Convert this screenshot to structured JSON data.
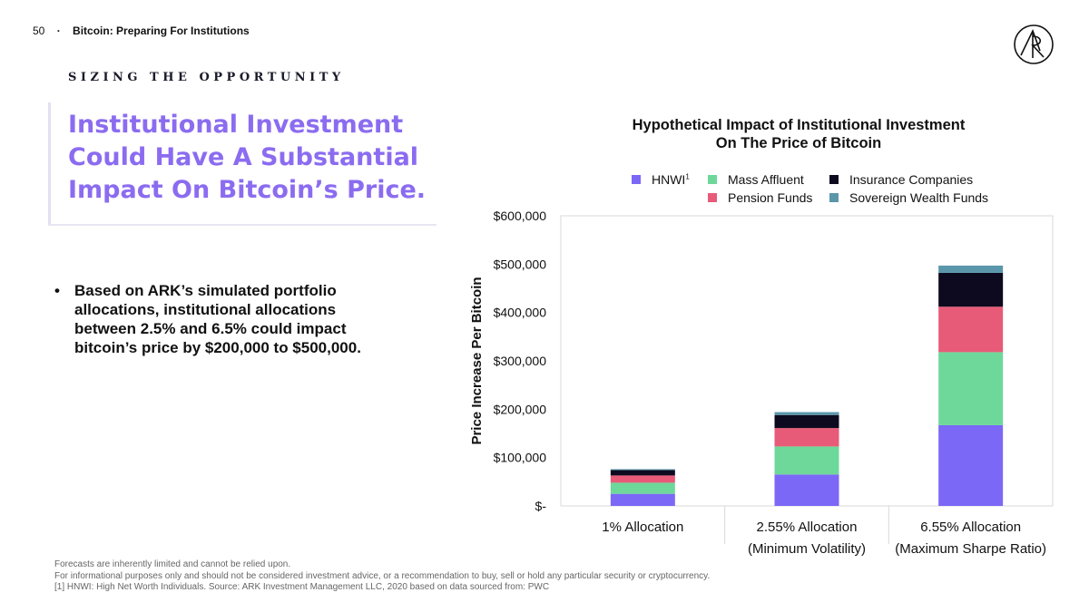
{
  "header": {
    "page_number": "50",
    "separator": "·",
    "doc_title": "Bitcoin: Preparing For Institutions"
  },
  "kicker": "SIZING THE OPPORTUNITY",
  "headline": "Institutional Investment Could Have A Substantial Impact On Bitcoin’s Price.",
  "bullet": {
    "mark": "•",
    "text": "Based on ARK’s simulated portfolio allocations, institutional allocations between 2.5% and 6.5% could impact bitcoin’s price by $200,000 to $500,000."
  },
  "colors": {
    "accent": "#8b6cf0",
    "hnwi": "#7b68f6",
    "mass_affluent": "#6ed89a",
    "pension": "#e75b78",
    "insurance": "#0d0a1f",
    "sovereign": "#5a97aa"
  },
  "chart_data": {
    "type": "bar",
    "stacked": true,
    "title_line1": "Hypothetical Impact of Institutional Investment",
    "title_line2": "On The Price of Bitcoin",
    "ylabel": "Price Increase Per Bitcoin",
    "ylim": [
      0,
      600000
    ],
    "y_ticks": [
      0,
      100000,
      200000,
      300000,
      400000,
      500000,
      600000
    ],
    "y_tick_labels": [
      "$-",
      "$100,000",
      "$200,000",
      "$300,000",
      "$400,000",
      "$500,000",
      "$600,000"
    ],
    "categories": [
      {
        "line1": "1% Allocation",
        "line2": ""
      },
      {
        "line1": "2.55% Allocation",
        "line2": "(Minimum Volatility)"
      },
      {
        "line1": "6.55% Allocation",
        "line2": "(Maximum Sharpe Ratio)"
      }
    ],
    "series": [
      {
        "name": "HNWI",
        "name_sup": "1",
        "color": "#7b68f6",
        "values": [
          25000,
          65000,
          167000
        ]
      },
      {
        "name": "Mass Affluent",
        "color": "#6ed89a",
        "values": [
          23000,
          58000,
          151000
        ]
      },
      {
        "name": "Pension Funds",
        "color": "#e75b78",
        "values": [
          15000,
          38000,
          94000
        ]
      },
      {
        "name": "Insurance Companies",
        "color": "#0d0a1f",
        "values": [
          11000,
          27000,
          70000
        ]
      },
      {
        "name": "Sovereign Wealth Funds",
        "color": "#5a97aa",
        "values": [
          2000,
          6000,
          15000
        ]
      }
    ],
    "grid": false,
    "legend_position": "top"
  },
  "footnotes": [
    "Forecasts are inherently limited and cannot be relied upon.",
    "For informational purposes only and should not be considered investment advice, or a recommendation to buy, sell or hold any particular security or cryptocurrency.",
    "[1] HNWI: High Net Worth Individuals. Source: ARK Investment Management LLC, 2020 based on data sourced from: PWC"
  ]
}
